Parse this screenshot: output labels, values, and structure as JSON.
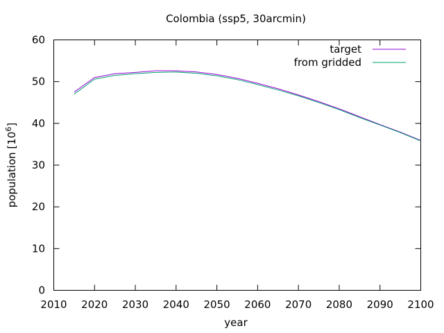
{
  "chart_data": {
    "type": "line",
    "title": "Colombia (ssp5, 30arcmin)",
    "xlabel": "year",
    "ylabel_main": "population [10",
    "ylabel_sup": "6",
    "ylabel_end": "]",
    "xlim": [
      2010,
      2100
    ],
    "ylim": [
      0,
      60
    ],
    "xticks": [
      2010,
      2020,
      2030,
      2040,
      2050,
      2060,
      2070,
      2080,
      2090,
      2100
    ],
    "yticks": [
      0,
      10,
      20,
      30,
      40,
      50,
      60
    ],
    "grid": false,
    "legend_position": "top-right",
    "series": [
      {
        "name": "target",
        "color": "#9400d3",
        "x": [
          2015,
          2020,
          2025,
          2030,
          2035,
          2040,
          2045,
          2050,
          2055,
          2060,
          2065,
          2070,
          2075,
          2080,
          2085,
          2090,
          2095,
          2100
        ],
        "y": [
          47.5,
          51.0,
          51.9,
          52.2,
          52.6,
          52.6,
          52.3,
          51.7,
          50.8,
          49.6,
          48.3,
          46.8,
          45.2,
          43.5,
          41.6,
          39.7,
          37.9,
          35.9
        ]
      },
      {
        "name": "from gridded",
        "color": "#009e73",
        "x": [
          2015,
          2020,
          2025,
          2030,
          2035,
          2040,
          2045,
          2050,
          2055,
          2060,
          2065,
          2070,
          2075,
          2080,
          2085,
          2090,
          2095,
          2100
        ],
        "y": [
          47.0,
          50.6,
          51.5,
          51.9,
          52.2,
          52.3,
          52.0,
          51.4,
          50.5,
          49.3,
          48.0,
          46.6,
          45.0,
          43.3,
          41.4,
          39.6,
          37.8,
          35.8
        ]
      }
    ]
  }
}
